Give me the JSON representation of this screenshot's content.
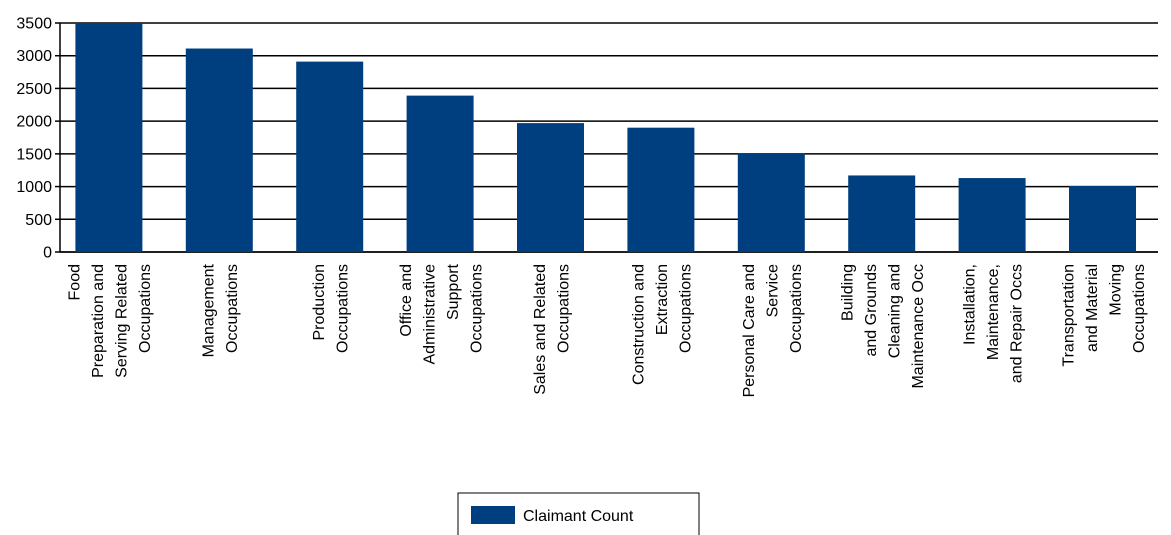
{
  "chart_data": {
    "type": "bar",
    "categories": [
      [
        "Food",
        "Preparation and",
        "Serving Related",
        "Occupations"
      ],
      [
        "Management",
        "Occupations"
      ],
      [
        "Production",
        "Occupations"
      ],
      [
        "Office and",
        "Administrative",
        "Support",
        "Occupations"
      ],
      [
        "Sales and Related",
        "Occupations"
      ],
      [
        "Construction and",
        "Extraction",
        "Occupations"
      ],
      [
        "Personal Care and",
        "Service",
        "Occupations"
      ],
      [
        "Building",
        "and Grounds",
        "Cleaning and",
        "Maintenance Occ"
      ],
      [
        "Installation,",
        "Maintenance,",
        "and Repair Occs"
      ],
      [
        "Transportation",
        "and Material",
        "Moving",
        "Occupations"
      ]
    ],
    "series": [
      {
        "name": "Claimant Count",
        "values": [
          3500,
          3110,
          2910,
          2390,
          1970,
          1900,
          1510,
          1170,
          1130,
          1010
        ]
      }
    ],
    "yticks": [
      "0",
      "500",
      "1000",
      "1500",
      "2000",
      "2500",
      "3000",
      "3500"
    ],
    "ylim": [
      0,
      3500
    ],
    "grid": true,
    "legend": "bottom-center",
    "title": "",
    "xlabel": "",
    "ylabel": "",
    "colors": {
      "bar": "#003F7F",
      "grid": "#000000",
      "axis": "#000000"
    }
  }
}
